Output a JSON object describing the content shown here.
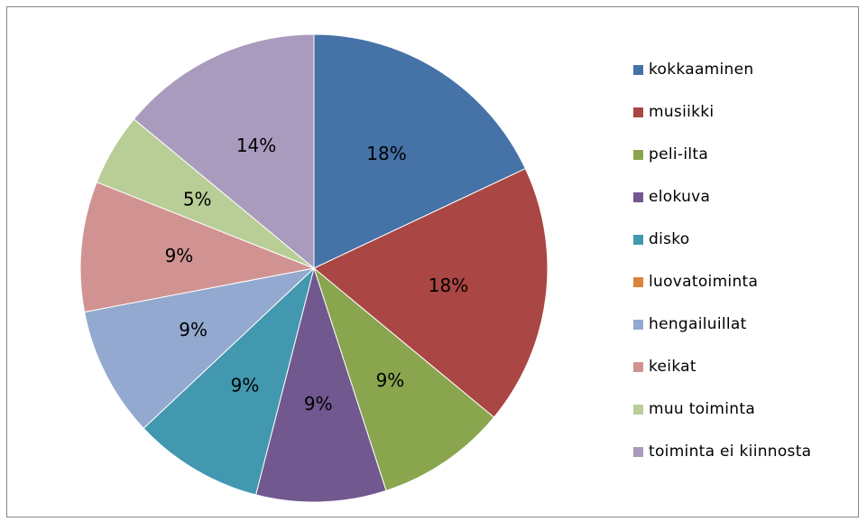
{
  "chart_data": {
    "type": "pie",
    "title": "",
    "legend_position": "right",
    "slices": [
      {
        "label": "kokkaaminen",
        "value": 18,
        "display": "18%",
        "color": "#4572A7"
      },
      {
        "label": "musiikki",
        "value": 18,
        "display": "18%",
        "color": "#AA4643"
      },
      {
        "label": "peli-ilta",
        "value": 9,
        "display": "9%",
        "color": "#89A54E"
      },
      {
        "label": "elokuva",
        "value": 9,
        "display": "9%",
        "color": "#71588F"
      },
      {
        "label": "disko",
        "value": 9,
        "display": "9%",
        "color": "#4198AF"
      },
      {
        "label": "luovatoiminta",
        "value": 0,
        "display": "",
        "color": "#DB843D"
      },
      {
        "label": "hengailuillat",
        "value": 9,
        "display": "9%",
        "color": "#93A9CF"
      },
      {
        "label": "keikat",
        "value": 9,
        "display": "9%",
        "color": "#D19392"
      },
      {
        "label": "muu toiminta",
        "value": 5,
        "display": "5%",
        "color": "#B9CD96"
      },
      {
        "label": "toiminta ei kiinnosta",
        "value": 14,
        "display": "14%",
        "color": "#A99BBD"
      }
    ]
  }
}
